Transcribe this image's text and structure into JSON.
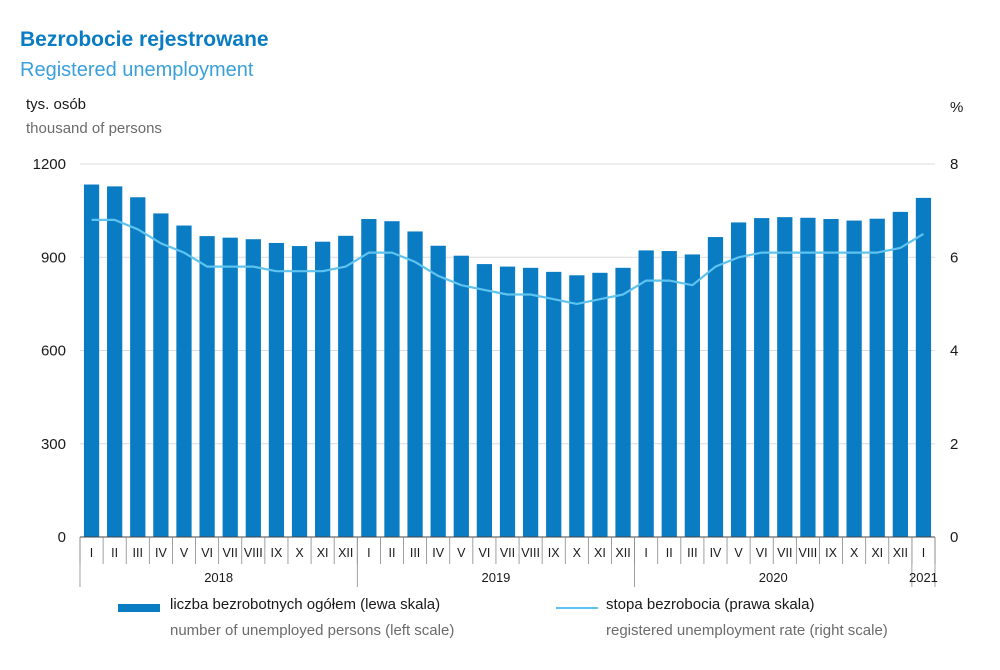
{
  "header": {
    "title": "Bezrobocie rejestrowane",
    "subtitle": "Registered unemployment",
    "left_unit_pl": "tys. osób",
    "left_unit_en": "thousand of persons",
    "right_unit": "%"
  },
  "legend": {
    "bars_pl": "liczba bezrobotnych ogółem (lewa skala)",
    "bars_en": "number of unemployed persons (left scale)",
    "line_pl": "stopa bezrobocia (prawa skala)",
    "line_en": "registered unemployment rate (right scale)"
  },
  "colors": {
    "bars": "#0a7cc4",
    "line": "#5ec3ee",
    "grid": "#dcdcdc",
    "axis": "#444444"
  },
  "chart_data": {
    "type": "bar",
    "left_axis": {
      "ylim": [
        0,
        1200
      ],
      "ticks": [
        0,
        300,
        600,
        900,
        1200
      ]
    },
    "right_axis": {
      "ylim": [
        0,
        8
      ],
      "ticks": [
        0,
        2,
        4,
        6,
        8
      ]
    },
    "categories": [
      "I",
      "II",
      "III",
      "IV",
      "V",
      "VI",
      "VII",
      "VIII",
      "IX",
      "X",
      "XI",
      "XII",
      "I",
      "II",
      "III",
      "IV",
      "V",
      "VI",
      "VII",
      "VIII",
      "IX",
      "X",
      "XI",
      "XII",
      "I",
      "II",
      "III",
      "IV",
      "V",
      "VI",
      "VII",
      "VIII",
      "IX",
      "X",
      "XI",
      "XII",
      "I"
    ],
    "years": [
      {
        "label": "2018",
        "start": 0,
        "end": 11
      },
      {
        "label": "2019",
        "start": 12,
        "end": 23
      },
      {
        "label": "2020",
        "start": 24,
        "end": 35
      },
      {
        "label": "2021",
        "start": 36,
        "end": 36
      }
    ],
    "series": [
      {
        "name": "liczba bezrobotnych ogółem (lewa skala)",
        "axis": "left",
        "type": "bar",
        "values": [
          1134,
          1128,
          1093,
          1041,
          1002,
          968,
          963,
          958,
          946,
          936,
          950,
          969,
          1023,
          1016,
          983,
          937,
          905,
          878,
          870,
          866,
          853,
          842,
          850,
          866,
          922,
          920,
          909,
          965,
          1012,
          1026,
          1029,
          1027,
          1023,
          1018,
          1024,
          1046,
          1091
        ]
      },
      {
        "name": "stopa bezrobocia (prawa skala)",
        "axis": "right",
        "type": "line",
        "values": [
          6.8,
          6.8,
          6.6,
          6.3,
          6.1,
          5.8,
          5.8,
          5.8,
          5.7,
          5.7,
          5.7,
          5.8,
          6.1,
          6.1,
          5.9,
          5.6,
          5.4,
          5.3,
          5.2,
          5.2,
          5.1,
          5.0,
          5.1,
          5.2,
          5.5,
          5.5,
          5.4,
          5.8,
          6.0,
          6.1,
          6.1,
          6.1,
          6.1,
          6.1,
          6.1,
          6.2,
          6.5
        ]
      }
    ]
  }
}
